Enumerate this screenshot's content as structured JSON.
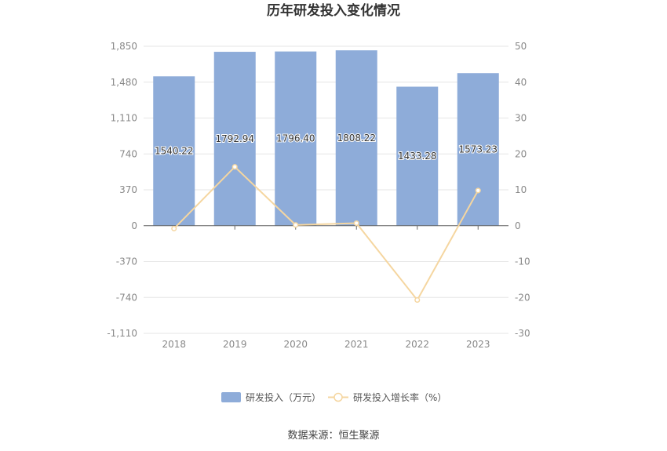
{
  "chart_data": {
    "type": "bar",
    "title": "历年研发投入变化情况",
    "categories": [
      "2018",
      "2019",
      "2020",
      "2021",
      "2022",
      "2023"
    ],
    "series": [
      {
        "name": "研发投入（万元）",
        "type": "bar",
        "axis": "left",
        "values": [
          1540.22,
          1792.94,
          1796.4,
          1808.22,
          1433.28,
          1573.23
        ],
        "labels": [
          "1540.22",
          "1792.94",
          "1796.40",
          "1808.22",
          "1433.28",
          "1573.23"
        ],
        "color": "#8eacd9"
      },
      {
        "name": "研发投入增长率（%）",
        "type": "line",
        "axis": "right",
        "values": [
          -0.8,
          16.4,
          0.2,
          0.7,
          -20.7,
          9.8
        ],
        "color": "#f5d6a0"
      }
    ],
    "y_left": {
      "ticks": [
        "1,850",
        "1,480",
        "1,110",
        "740",
        "370",
        "0",
        "-370",
        "-740",
        "-1,110"
      ],
      "min": -1110,
      "max": 1850
    },
    "y_right": {
      "ticks": [
        "50",
        "40",
        "30",
        "20",
        "10",
        "0",
        "-10",
        "-20",
        "-30"
      ],
      "min": -30,
      "max": 50
    },
    "grid": true,
    "legend_position": "bottom"
  },
  "source": "数据来源：恒生聚源"
}
